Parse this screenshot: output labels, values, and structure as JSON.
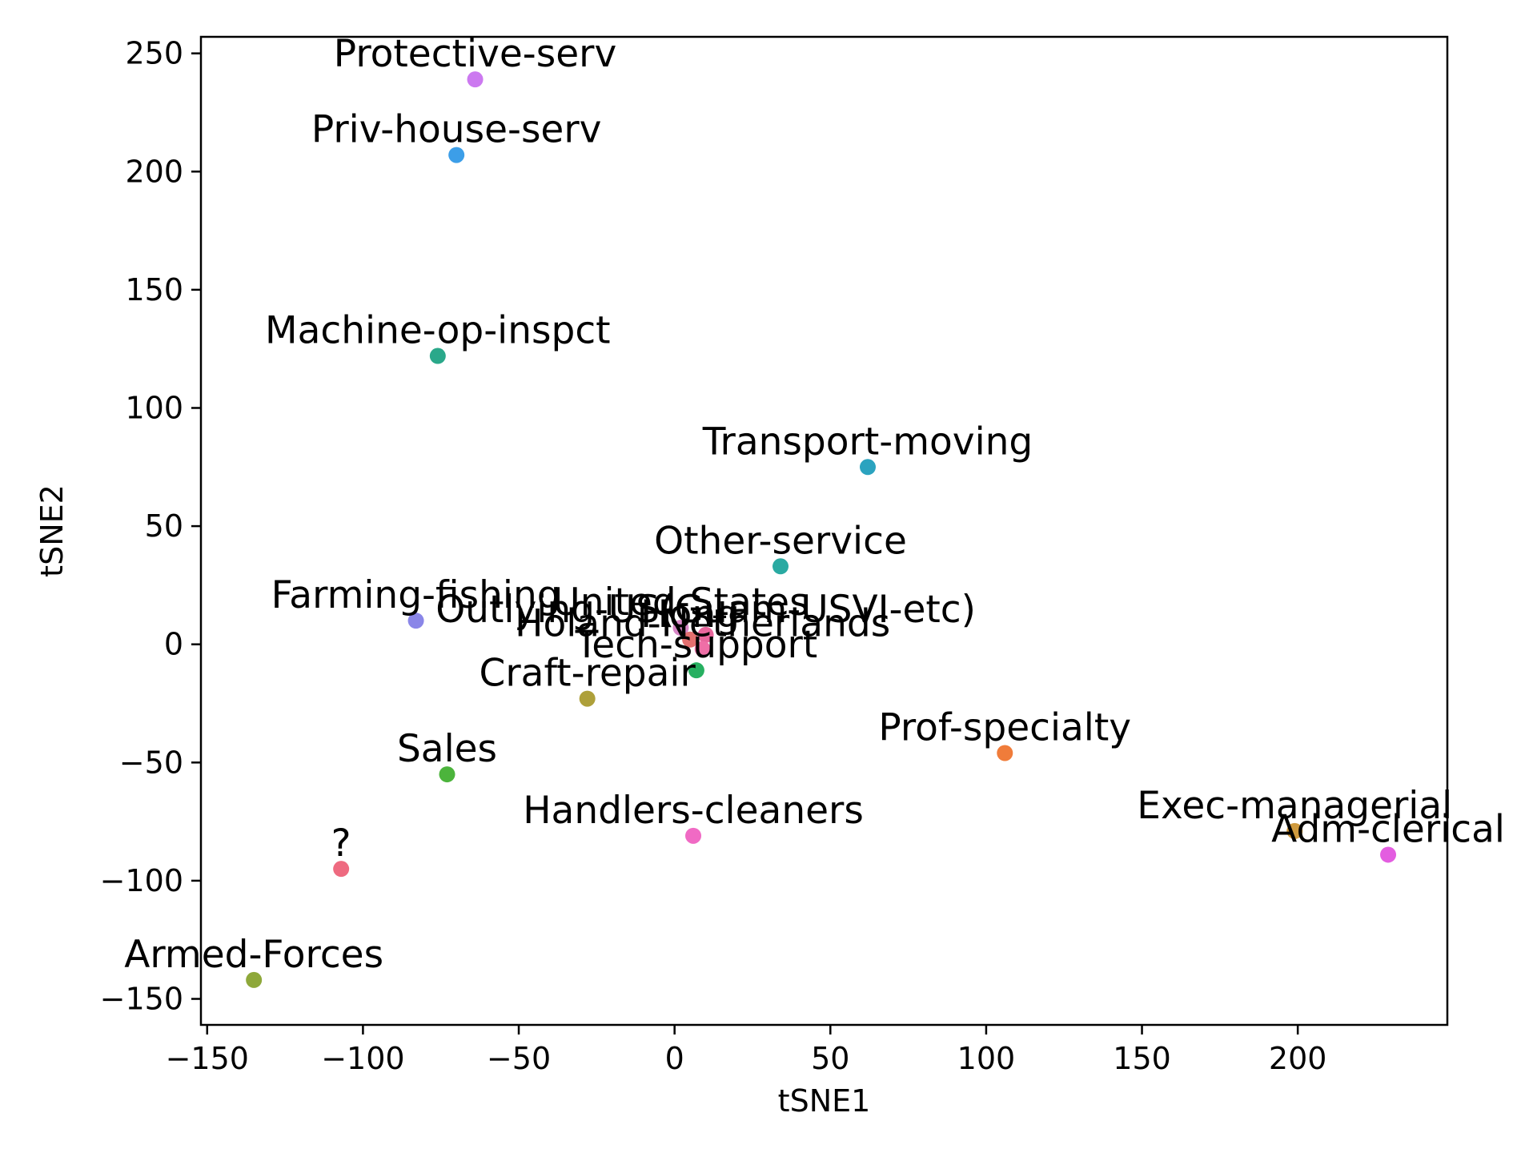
{
  "chart_data": {
    "type": "scatter",
    "title": "",
    "xlabel": "tSNE1",
    "ylabel": "tSNE2",
    "xlim": [
      -152,
      248
    ],
    "ylim": [
      -161,
      257
    ],
    "xticks": [
      -150,
      -100,
      -50,
      0,
      50,
      100,
      150,
      200
    ],
    "yticks": [
      -150,
      -100,
      -50,
      0,
      50,
      100,
      150,
      200,
      250
    ],
    "xtick_labels": [
      "−150",
      "−100",
      "−50",
      "0",
      "50",
      "100",
      "150",
      "200"
    ],
    "ytick_labels": [
      "−150",
      "−100",
      "−50",
      "0",
      "50",
      "100",
      "150",
      "200",
      "250"
    ],
    "grid": false,
    "points": [
      {
        "label": "Protective-serv",
        "x": -64,
        "y": 239,
        "color": "#cc79f0"
      },
      {
        "label": "Priv-house-serv",
        "x": -70,
        "y": 207,
        "color": "#3c9ee8"
      },
      {
        "label": "Machine-op-inspct",
        "x": -76,
        "y": 122,
        "color": "#2aa88a"
      },
      {
        "label": "Transport-moving",
        "x": 62,
        "y": 75,
        "color": "#2ba3bf"
      },
      {
        "label": "Other-service",
        "x": 34,
        "y": 33,
        "color": "#2aaaa2"
      },
      {
        "label": "Farming-fishing",
        "x": -83,
        "y": 10,
        "color": "#8a86e8"
      },
      {
        "label": "Outlying-US(Guam-USVI-etc)",
        "x": 10,
        "y": 4,
        "color": "#e8669c"
      },
      {
        "label": "United-States",
        "x": 2,
        "y": 7,
        "color": "#d987c8"
      },
      {
        "label": "Hong",
        "x": 5,
        "y": 2,
        "color": "#e36f6f"
      },
      {
        "label": "Holand-Netherlands",
        "x": 9,
        "y": -2,
        "color": "#ef6fa7"
      },
      {
        "label": "Tech-support",
        "x": 7,
        "y": -11,
        "color": "#27b061"
      },
      {
        "label": "Craft-repair",
        "x": -28,
        "y": -23,
        "color": "#aea03a"
      },
      {
        "label": "Prof-specialty",
        "x": 106,
        "y": -46,
        "color": "#f07c3a"
      },
      {
        "label": "Sales",
        "x": -73,
        "y": -55,
        "color": "#4cb43c"
      },
      {
        "label": "Handlers-cleaners",
        "x": 6,
        "y": -81,
        "color": "#f06ac4"
      },
      {
        "label": "Exec-managerial",
        "x": 199,
        "y": -79,
        "color": "#cf9a3e"
      },
      {
        "label": "Adm-clerical",
        "x": 229,
        "y": -89,
        "color": "#e35de0"
      },
      {
        "label": "?",
        "x": -107,
        "y": -95,
        "color": "#ee6a80"
      },
      {
        "label": "Armed-Forces",
        "x": -135,
        "y": -142,
        "color": "#8ea83a"
      }
    ]
  }
}
